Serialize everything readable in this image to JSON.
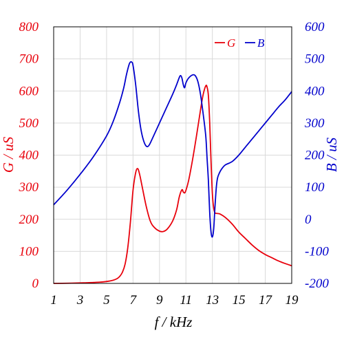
{
  "chart_data": {
    "type": "line",
    "xlabel": "f / kHz",
    "ylabel_left": "G / uS",
    "ylabel_right": "B / uS",
    "xlim": [
      1,
      19
    ],
    "ylim_left": [
      0,
      800
    ],
    "ylim_right": [
      -200,
      600
    ],
    "xticks": [
      1,
      3,
      5,
      7,
      9,
      11,
      13,
      15,
      17,
      19
    ],
    "yticks_left": [
      0,
      100,
      200,
      300,
      400,
      500,
      600,
      700,
      800
    ],
    "yticks_right": [
      -200,
      -100,
      0,
      100,
      200,
      300,
      400,
      500,
      600
    ],
    "grid": true,
    "legend_position": "top-right",
    "colors": {
      "G": "#e8000b",
      "B": "#0000cc",
      "grid": "#d9d9d9",
      "frame": "#000000"
    },
    "series": [
      {
        "name": "G",
        "axis": "left",
        "x": [
          1,
          2,
          3,
          3.5,
          4,
          4.5,
          5,
          5.5,
          5.8,
          6.0,
          6.2,
          6.4,
          6.6,
          6.8,
          7.0,
          7.2,
          7.35,
          7.5,
          7.7,
          8.0,
          8.3,
          8.6,
          9.0,
          9.3,
          9.6,
          10.0,
          10.3,
          10.5,
          10.7,
          10.8,
          10.9,
          11.0,
          11.2,
          11.5,
          11.8,
          12.1,
          12.3,
          12.5,
          12.6,
          12.7,
          12.8,
          12.9,
          13.0,
          13.1,
          13.2,
          13.4,
          13.6,
          14.0,
          14.5,
          15.0,
          15.5,
          16.0,
          16.5,
          17.0,
          17.5,
          18.0,
          18.5,
          19.0
        ],
        "values": [
          0,
          0.5,
          1.5,
          2,
          3,
          4,
          6,
          10,
          15,
          22,
          35,
          60,
          110,
          190,
          290,
          345,
          358,
          340,
          300,
          240,
          195,
          175,
          163,
          162,
          170,
          195,
          230,
          270,
          292,
          285,
          282,
          290,
          320,
          385,
          460,
          540,
          588,
          616,
          612,
          585,
          500,
          380,
          280,
          235,
          220,
          218,
          216,
          205,
          185,
          160,
          140,
          120,
          103,
          90,
          80,
          70,
          62,
          55
        ]
      },
      {
        "name": "B",
        "axis": "right",
        "x": [
          1,
          2,
          3,
          4,
          5,
          5.5,
          6.0,
          6.3,
          6.5,
          6.7,
          6.8,
          6.9,
          7.0,
          7.2,
          7.4,
          7.6,
          7.8,
          8.0,
          8.2,
          8.5,
          9.0,
          9.5,
          10.0,
          10.3,
          10.5,
          10.6,
          10.7,
          10.8,
          10.9,
          11.0,
          11.2,
          11.5,
          11.7,
          11.9,
          12.1,
          12.3,
          12.5,
          12.6,
          12.7,
          12.8,
          12.9,
          13.0,
          13.1,
          13.2,
          13.3,
          13.4,
          13.6,
          13.8,
          14.0,
          14.5,
          15.0,
          15.5,
          16.0,
          16.5,
          17.0,
          17.5,
          18.0,
          18.5,
          19.0
        ],
        "values": [
          45,
          90,
          140,
          195,
          260,
          305,
          365,
          410,
          450,
          482,
          490,
          490,
          480,
          420,
          340,
          280,
          245,
          228,
          230,
          255,
          300,
          345,
          390,
          420,
          442,
          448,
          440,
          420,
          410,
          425,
          440,
          450,
          448,
          430,
          390,
          330,
          260,
          190,
          120,
          20,
          -40,
          -55,
          -30,
          40,
          100,
          130,
          150,
          162,
          170,
          180,
          200,
          225,
          250,
          275,
          300,
          325,
          350,
          372,
          398
        ]
      }
    ]
  }
}
